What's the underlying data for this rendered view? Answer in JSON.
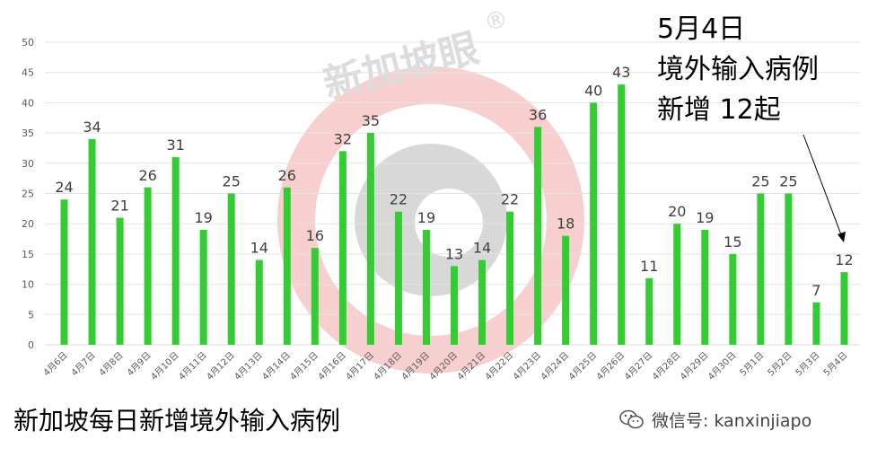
{
  "watermark": {
    "text": "新加坡眼",
    "mark": "®"
  },
  "callout": {
    "line1": "5月4日",
    "line2": "境外输入病例",
    "line3": "新增 12起"
  },
  "footer": {
    "title": "新加坡每日新增境外输入病例",
    "wechat_label": "微信号: kanxinjiapo"
  },
  "chart_data": {
    "type": "bar",
    "title": "新加坡每日新增境外输入病例",
    "xlabel": "",
    "ylabel": "",
    "ylim": [
      0,
      50
    ],
    "yticks": [
      0,
      5,
      10,
      15,
      20,
      25,
      30,
      35,
      40,
      45,
      50
    ],
    "grid": true,
    "bar_color": "#33cc33",
    "categories": [
      "4月6日",
      "4月7日",
      "4月8日",
      "4月9日",
      "4月10日",
      "4月11日",
      "4月12日",
      "4月13日",
      "4月14日",
      "4月15日",
      "4月16日",
      "4月17日",
      "4月18日",
      "4月19日",
      "4月20日",
      "4月21日",
      "4月22日",
      "4月23日",
      "4月24日",
      "4月25日",
      "4月26日",
      "4月27日",
      "4月28日",
      "4月29日",
      "4月30日",
      "5月1日",
      "5月2日",
      "5月3日",
      "5月4日"
    ],
    "values": [
      24,
      34,
      21,
      26,
      31,
      19,
      25,
      14,
      26,
      16,
      32,
      35,
      22,
      19,
      13,
      14,
      22,
      36,
      18,
      40,
      43,
      11,
      20,
      19,
      15,
      25,
      25,
      7,
      12
    ],
    "data_labels": true
  }
}
